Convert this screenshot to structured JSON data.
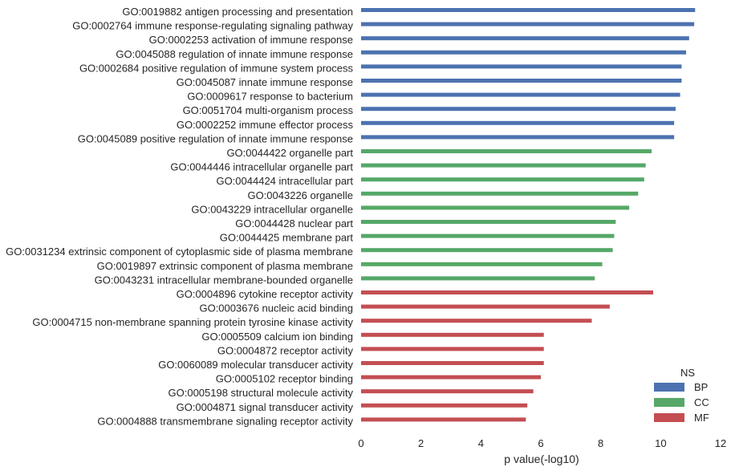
{
  "chart_data": {
    "type": "bar",
    "orientation": "horizontal",
    "xlabel": "p value(-log10)",
    "ylabel": "",
    "title": "",
    "xlim": [
      0,
      12
    ],
    "xticks": [
      0,
      2,
      4,
      6,
      8,
      10,
      12
    ],
    "grid": false,
    "legend": {
      "title": "NS",
      "placement": "bottom-right",
      "entries": [
        {
          "name": "BP",
          "color": "#4c72b0"
        },
        {
          "name": "CC",
          "color": "#55a868"
        },
        {
          "name": "MF",
          "color": "#c44e52"
        }
      ]
    },
    "categories": [
      "GO:0019882 antigen processing and presentation",
      "GO:0002764 immune response-regulating signaling pathway",
      "GO:0002253 activation of immune response",
      "GO:0045088 regulation of innate immune response",
      "GO:0002684 positive regulation of immune system process",
      "GO:0045087 innate immune response",
      "GO:0009617 response to bacterium",
      "GO:0051704 multi-organism process",
      "GO:0002252 immune effector process",
      "GO:0045089 positive regulation of innate immune response",
      "GO:0044422 organelle part",
      "GO:0044446 intracellular organelle part",
      "GO:0044424 intracellular part",
      "GO:0043226 organelle",
      "GO:0043229 intracellular organelle",
      "GO:0044428 nuclear part",
      "GO:0044425 membrane part",
      "GO:0031234 extrinsic component of cytoplasmic side of plasma membrane",
      "GO:0019897 extrinsic component of plasma membrane",
      "GO:0043231 intracellular membrane-bounded organelle",
      "GO:0004896 cytokine receptor activity",
      "GO:0003676 nucleic acid binding",
      "GO:0004715 non-membrane spanning protein tyrosine kinase activity",
      "GO:0005509 calcium ion binding",
      "GO:0004872 receptor activity",
      "GO:0060089 molecular transducer activity",
      "GO:0005102 receptor binding",
      "GO:0005198 structural molecule activity",
      "GO:0004871 signal transducer activity",
      "GO:0004888 transmembrane signaling receptor activity"
    ],
    "groups": [
      "BP",
      "BP",
      "BP",
      "BP",
      "BP",
      "BP",
      "BP",
      "BP",
      "BP",
      "BP",
      "CC",
      "CC",
      "CC",
      "CC",
      "CC",
      "CC",
      "CC",
      "CC",
      "CC",
      "CC",
      "MF",
      "MF",
      "MF",
      "MF",
      "MF",
      "MF",
      "MF",
      "MF",
      "MF",
      "MF"
    ],
    "values": [
      11.15,
      11.12,
      10.95,
      10.85,
      10.7,
      10.7,
      10.65,
      10.5,
      10.45,
      10.45,
      9.7,
      9.5,
      9.45,
      9.25,
      8.95,
      8.5,
      8.45,
      8.4,
      8.05,
      7.8,
      9.75,
      8.3,
      7.7,
      6.1,
      6.1,
      6.1,
      6.0,
      5.75,
      5.55,
      5.5
    ]
  }
}
